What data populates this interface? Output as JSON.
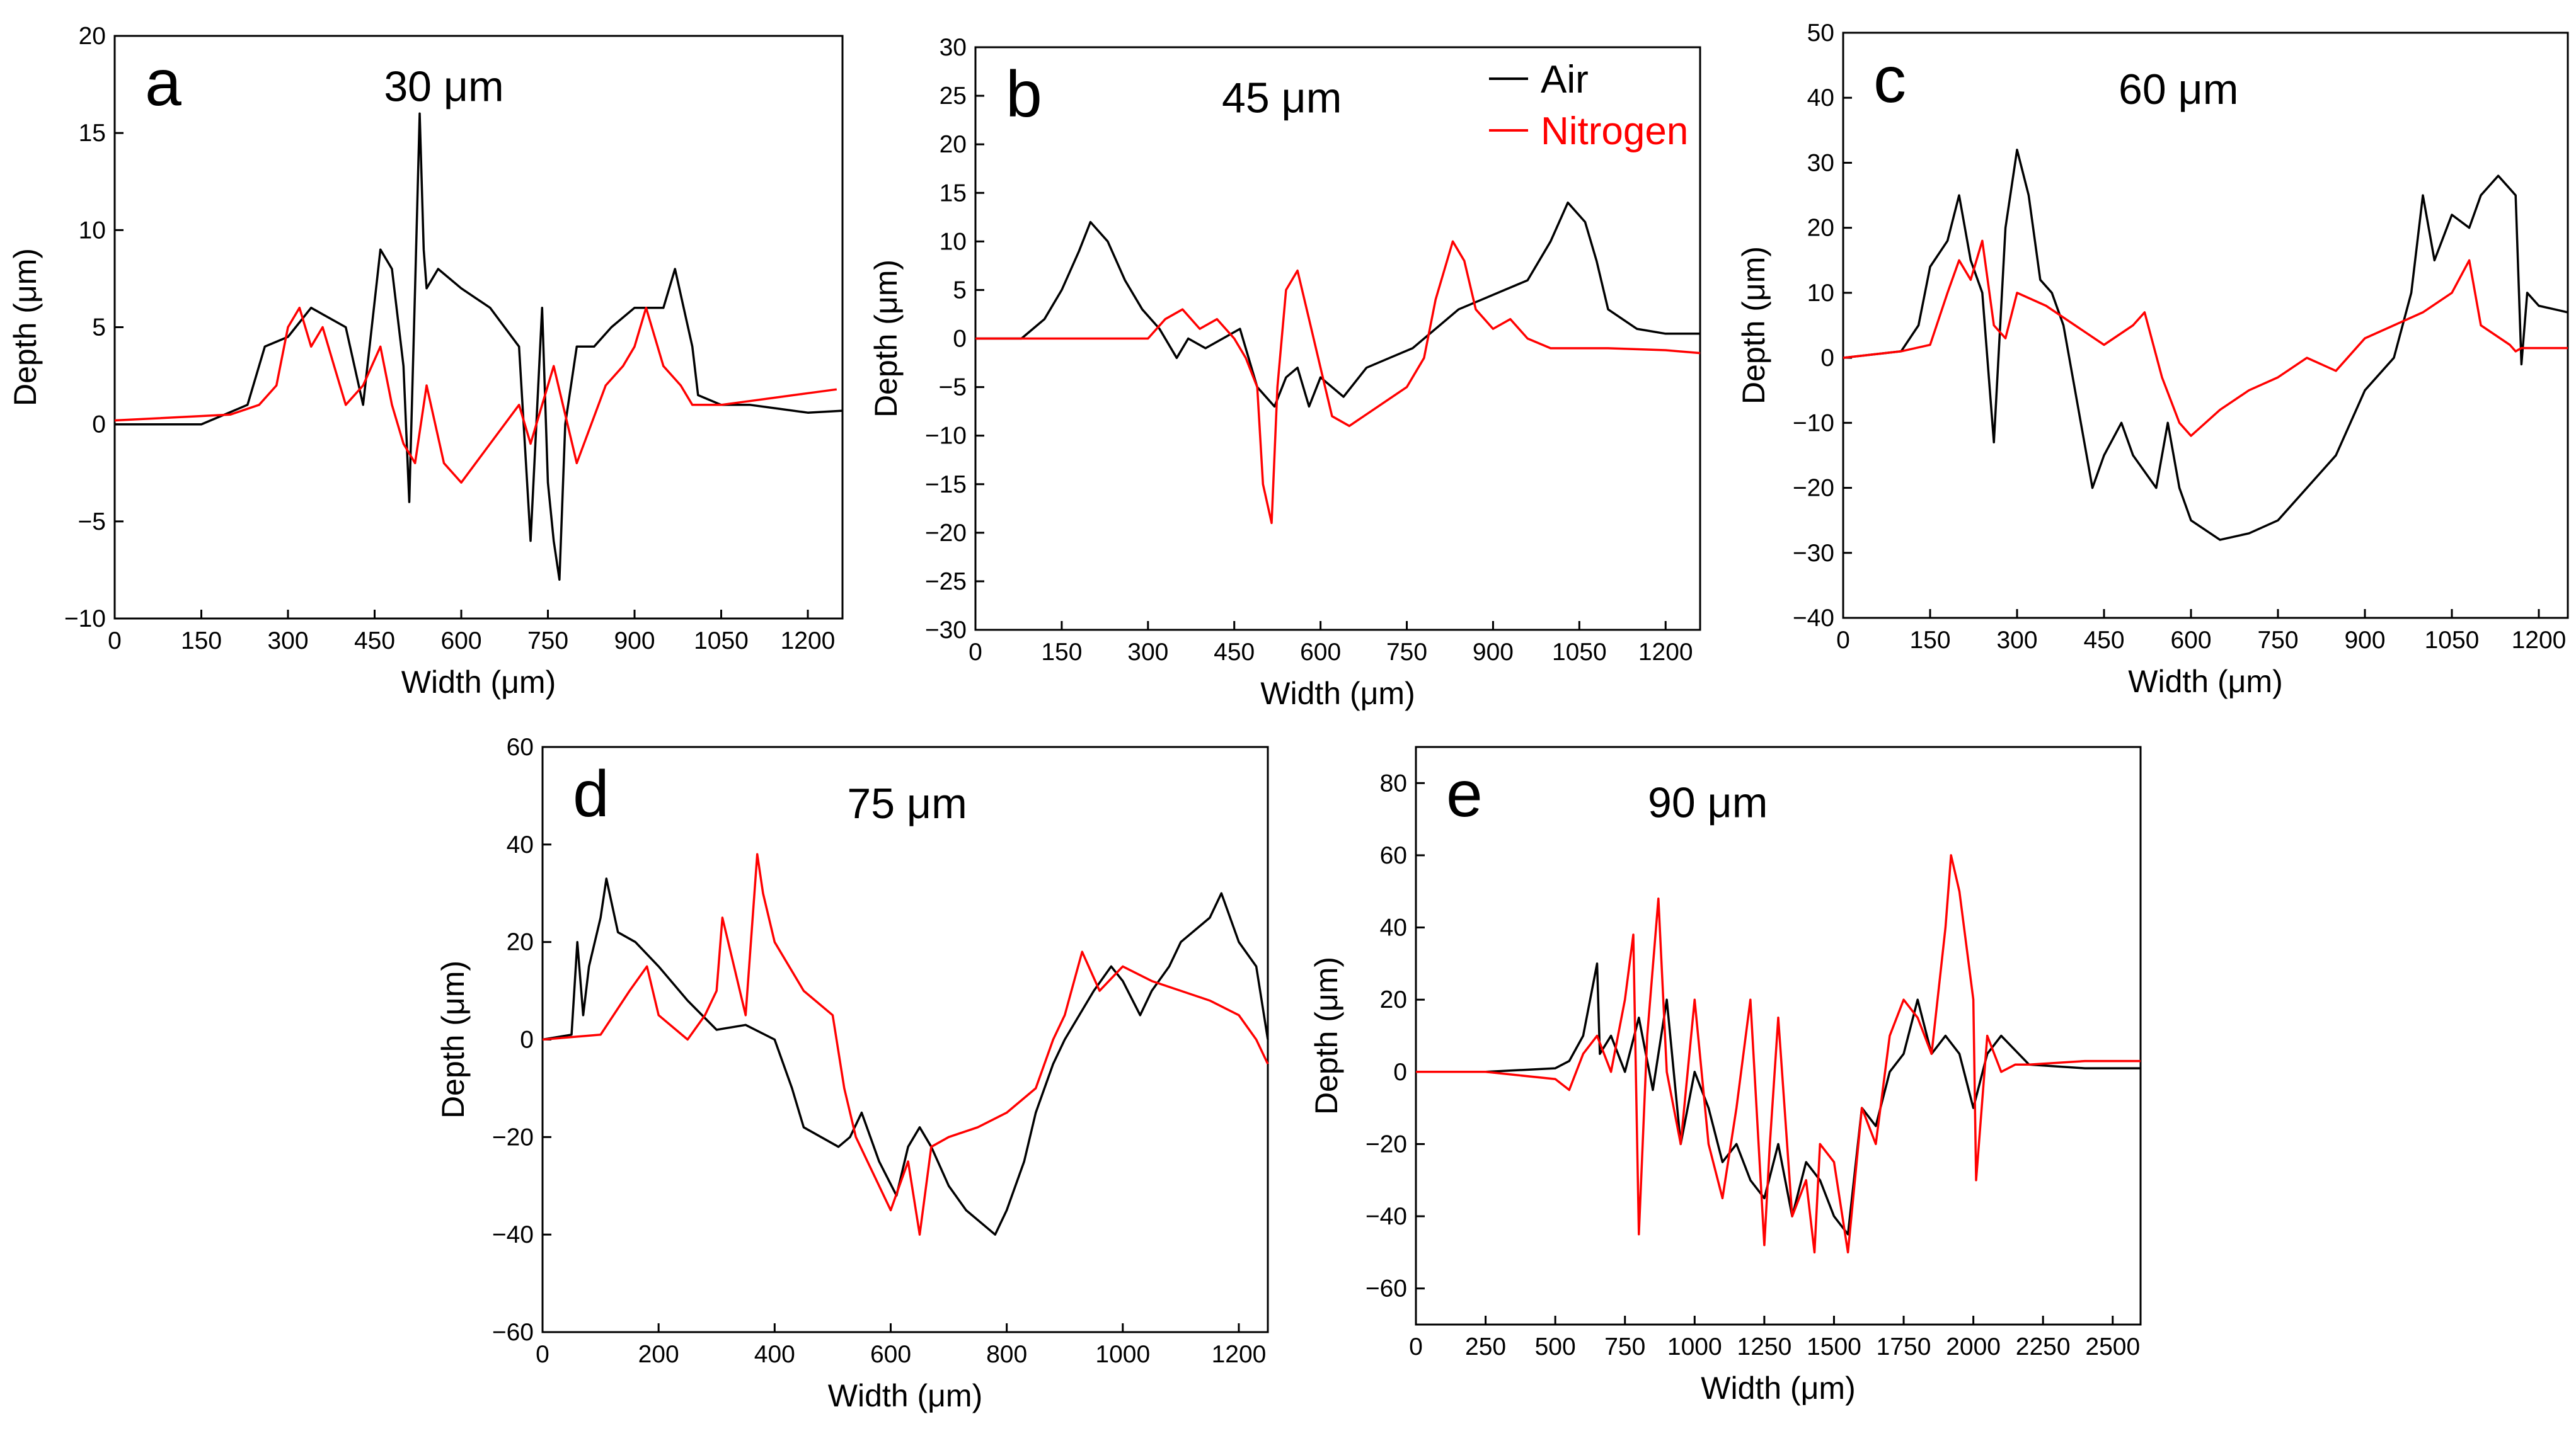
{
  "colors": {
    "air": "#000000",
    "nitrogen": "#ff0000",
    "axis": "#000000",
    "background": "#ffffff"
  },
  "legend": {
    "panel": "b",
    "position": "top-right",
    "entries": [
      "Air",
      "Nitrogen"
    ]
  },
  "chart_data": [
    {
      "panel": "a",
      "title": "30 μm",
      "type": "line",
      "xlabel": "Width (μm)",
      "ylabel": "Depth (μm)",
      "xlim": [
        0,
        1260
      ],
      "ylim": [
        -10,
        20
      ],
      "xticks": [
        0,
        150,
        300,
        450,
        600,
        750,
        900,
        1050,
        1200
      ],
      "yticks": [
        -10,
        -5,
        0,
        5,
        10,
        15,
        20
      ],
      "series": [
        {
          "name": "Air",
          "color": "#000000",
          "x": [
            0,
            150,
            230,
            260,
            300,
            340,
            400,
            430,
            460,
            480,
            500,
            510,
            520,
            528,
            535,
            540,
            560,
            600,
            650,
            700,
            720,
            740,
            750,
            760,
            770,
            780,
            800,
            830,
            860,
            900,
            950,
            970,
            1000,
            1010,
            1050,
            1100,
            1150,
            1200,
            1260
          ],
          "y": [
            0,
            0,
            1,
            4,
            4.5,
            6,
            5,
            1,
            9,
            8,
            3,
            -4,
            7,
            16,
            9,
            7,
            8,
            7,
            6,
            4,
            -6,
            6,
            -3,
            -6,
            -8,
            0,
            4,
            4,
            5,
            6,
            6,
            8,
            4,
            1.5,
            1,
            1,
            0.8,
            0.6,
            0.7
          ]
        },
        {
          "name": "Nitrogen",
          "color": "#ff0000",
          "x": [
            0,
            200,
            250,
            280,
            300,
            320,
            340,
            360,
            380,
            400,
            430,
            460,
            480,
            500,
            520,
            540,
            570,
            600,
            650,
            700,
            720,
            740,
            760,
            800,
            850,
            880,
            900,
            920,
            950,
            980,
            1000,
            1050,
            1100,
            1150,
            1200,
            1250
          ],
          "y": [
            0.2,
            0.5,
            1,
            2,
            5,
            6,
            4,
            5,
            3,
            1,
            2,
            4,
            1,
            -1,
            -2,
            2,
            -2,
            -3,
            -1,
            1,
            -1,
            1,
            3,
            -2,
            2,
            3,
            4,
            6,
            3,
            2,
            1,
            1,
            1.2,
            1.4,
            1.6,
            1.8
          ]
        }
      ]
    },
    {
      "panel": "b",
      "title": "45 μm",
      "type": "line",
      "xlabel": "Width (μm)",
      "ylabel": "Depth (μm)",
      "xlim": [
        0,
        1260
      ],
      "ylim": [
        -30,
        30
      ],
      "xticks": [
        0,
        150,
        300,
        450,
        600,
        750,
        900,
        1050,
        1200
      ],
      "yticks": [
        -30,
        -25,
        -20,
        -15,
        -10,
        -5,
        0,
        5,
        10,
        15,
        20,
        25,
        30
      ],
      "series": [
        {
          "name": "Air",
          "color": "#000000",
          "x": [
            0,
            80,
            120,
            150,
            180,
            200,
            230,
            260,
            290,
            320,
            350,
            370,
            400,
            430,
            460,
            490,
            520,
            540,
            560,
            580,
            600,
            640,
            680,
            720,
            760,
            800,
            840,
            880,
            920,
            960,
            1000,
            1030,
            1060,
            1080,
            1100,
            1150,
            1200,
            1260
          ],
          "y": [
            0,
            0,
            2,
            5,
            9,
            12,
            10,
            6,
            3,
            1,
            -2,
            0,
            -1,
            0,
            1,
            -5,
            -7,
            -4,
            -3,
            -7,
            -4,
            -6,
            -3,
            -2,
            -1,
            1,
            3,
            4,
            5,
            6,
            10,
            14,
            12,
            8,
            3,
            1,
            0.5,
            0.5
          ]
        },
        {
          "name": "Nitrogen",
          "color": "#ff0000",
          "x": [
            0,
            150,
            300,
            330,
            360,
            390,
            420,
            450,
            470,
            490,
            500,
            515,
            525,
            540,
            560,
            580,
            600,
            620,
            650,
            700,
            750,
            780,
            800,
            830,
            850,
            870,
            900,
            930,
            960,
            1000,
            1050,
            1100,
            1200,
            1260
          ],
          "y": [
            0,
            0,
            0,
            2,
            3,
            1,
            2,
            0,
            -2,
            -5,
            -15,
            -19,
            -5,
            5,
            7,
            2,
            -3,
            -8,
            -9,
            -7,
            -5,
            -2,
            4,
            10,
            8,
            3,
            1,
            2,
            0,
            -1,
            -1,
            -1,
            -1.2,
            -1.5
          ]
        }
      ]
    },
    {
      "panel": "c",
      "title": "60 μm",
      "type": "line",
      "xlabel": "Width (μm)",
      "ylabel": "Depth (μm)",
      "xlim": [
        0,
        1250
      ],
      "ylim": [
        -40,
        50
      ],
      "xticks": [
        0,
        150,
        300,
        450,
        600,
        750,
        900,
        1050,
        1200
      ],
      "yticks": [
        -40,
        -30,
        -20,
        -10,
        0,
        10,
        20,
        30,
        40,
        50
      ],
      "series": [
        {
          "name": "Air",
          "color": "#000000",
          "x": [
            0,
            100,
            130,
            150,
            180,
            200,
            220,
            240,
            260,
            280,
            300,
            320,
            340,
            360,
            380,
            400,
            430,
            450,
            480,
            500,
            540,
            560,
            580,
            600,
            650,
            700,
            750,
            800,
            850,
            900,
            950,
            980,
            1000,
            1020,
            1050,
            1080,
            1100,
            1130,
            1150,
            1160,
            1170,
            1180,
            1200,
            1250
          ],
          "y": [
            0,
            1,
            5,
            14,
            18,
            25,
            15,
            10,
            -13,
            20,
            32,
            25,
            12,
            10,
            5,
            -5,
            -20,
            -15,
            -10,
            -15,
            -20,
            -10,
            -20,
            -25,
            -28,
            -27,
            -25,
            -20,
            -15,
            -5,
            0,
            10,
            25,
            15,
            22,
            20,
            25,
            28,
            26,
            25,
            -1,
            10,
            8,
            7
          ]
        },
        {
          "name": "Nitrogen",
          "color": "#ff0000",
          "x": [
            0,
            100,
            150,
            180,
            200,
            220,
            240,
            260,
            280,
            300,
            350,
            400,
            450,
            500,
            520,
            550,
            580,
            600,
            650,
            700,
            750,
            800,
            850,
            900,
            950,
            1000,
            1050,
            1080,
            1100,
            1150,
            1160,
            1170,
            1200,
            1250
          ],
          "y": [
            0,
            1,
            2,
            10,
            15,
            12,
            18,
            5,
            3,
            10,
            8,
            5,
            2,
            5,
            7,
            -3,
            -10,
            -12,
            -8,
            -5,
            -3,
            0,
            -2,
            3,
            5,
            7,
            10,
            15,
            5,
            2,
            1,
            1.5,
            1.5,
            1.5
          ]
        }
      ]
    },
    {
      "panel": "d",
      "title": "75 μm",
      "type": "line",
      "xlabel": "Width (μm)",
      "ylabel": "Depth (μm)",
      "xlim": [
        0,
        1250
      ],
      "ylim": [
        -60,
        60
      ],
      "xticks": [
        0,
        200,
        400,
        600,
        800,
        1000,
        1200
      ],
      "yticks": [
        -60,
        -40,
        -20,
        0,
        20,
        40,
        60
      ],
      "series": [
        {
          "name": "Air",
          "color": "#000000",
          "x": [
            0,
            50,
            60,
            70,
            80,
            100,
            110,
            130,
            160,
            200,
            250,
            300,
            350,
            400,
            430,
            450,
            480,
            510,
            530,
            550,
            580,
            610,
            630,
            650,
            670,
            700,
            730,
            760,
            780,
            800,
            830,
            850,
            880,
            900,
            950,
            980,
            1000,
            1030,
            1050,
            1080,
            1100,
            1150,
            1170,
            1200,
            1230,
            1250
          ],
          "y": [
            0,
            1,
            20,
            5,
            15,
            25,
            33,
            22,
            20,
            15,
            8,
            2,
            3,
            0,
            -10,
            -18,
            -20,
            -22,
            -20,
            -15,
            -25,
            -32,
            -22,
            -18,
            -22,
            -30,
            -35,
            -38,
            -40,
            -35,
            -25,
            -15,
            -5,
            0,
            10,
            15,
            12,
            5,
            10,
            15,
            20,
            25,
            30,
            20,
            15,
            0
          ]
        },
        {
          "name": "Nitrogen",
          "color": "#ff0000",
          "x": [
            0,
            100,
            150,
            180,
            200,
            250,
            280,
            300,
            310,
            330,
            350,
            370,
            380,
            400,
            450,
            500,
            520,
            540,
            560,
            580,
            600,
            630,
            650,
            670,
            700,
            750,
            800,
            850,
            880,
            900,
            930,
            960,
            1000,
            1050,
            1100,
            1150,
            1200,
            1230,
            1250
          ],
          "y": [
            0,
            1,
            10,
            15,
            5,
            0,
            5,
            10,
            25,
            15,
            5,
            38,
            30,
            20,
            10,
            5,
            -10,
            -20,
            -25,
            -30,
            -35,
            -25,
            -40,
            -22,
            -20,
            -18,
            -15,
            -10,
            0,
            5,
            18,
            10,
            15,
            12,
            10,
            8,
            5,
            0,
            -5
          ]
        }
      ]
    },
    {
      "panel": "e",
      "title": "90 μm",
      "type": "line",
      "xlabel": "Width (μm)",
      "ylabel": "Depth (μm)",
      "xlim": [
        0,
        2600
      ],
      "ylim": [
        -70,
        90
      ],
      "xticks": [
        0,
        250,
        500,
        750,
        1000,
        1250,
        1500,
        1750,
        2000,
        2250,
        2500
      ],
      "yticks": [
        -60,
        -40,
        -20,
        0,
        20,
        40,
        60,
        80
      ],
      "series": [
        {
          "name": "Air",
          "color": "#000000",
          "x": [
            0,
            250,
            500,
            550,
            600,
            650,
            660,
            700,
            750,
            800,
            850,
            900,
            950,
            1000,
            1050,
            1100,
            1150,
            1200,
            1250,
            1300,
            1350,
            1400,
            1450,
            1500,
            1550,
            1600,
            1650,
            1700,
            1750,
            1800,
            1850,
            1900,
            1950,
            2000,
            2050,
            2100,
            2200,
            2400,
            2600
          ],
          "y": [
            0,
            0,
            1,
            3,
            10,
            30,
            5,
            10,
            0,
            15,
            -5,
            20,
            -20,
            0,
            -10,
            -25,
            -20,
            -30,
            -35,
            -20,
            -40,
            -25,
            -30,
            -40,
            -45,
            -10,
            -15,
            0,
            5,
            20,
            5,
            10,
            5,
            -10,
            5,
            10,
            2,
            1,
            1
          ]
        },
        {
          "name": "Nitrogen",
          "color": "#ff0000",
          "x": [
            0,
            250,
            500,
            550,
            600,
            650,
            700,
            750,
            780,
            800,
            830,
            870,
            900,
            950,
            1000,
            1050,
            1100,
            1150,
            1200,
            1250,
            1270,
            1300,
            1350,
            1400,
            1430,
            1450,
            1500,
            1550,
            1600,
            1650,
            1700,
            1750,
            1800,
            1850,
            1900,
            1920,
            1950,
            2000,
            2010,
            2050,
            2100,
            2150,
            2200,
            2400,
            2600
          ],
          "y": [
            0,
            0,
            -2,
            -5,
            5,
            10,
            0,
            20,
            38,
            -45,
            10,
            48,
            0,
            -20,
            20,
            -20,
            -35,
            -10,
            20,
            -48,
            -20,
            15,
            -40,
            -30,
            -50,
            -20,
            -25,
            -50,
            -10,
            -20,
            10,
            20,
            15,
            5,
            40,
            60,
            50,
            20,
            -30,
            10,
            0,
            2,
            2,
            3,
            3
          ]
        }
      ]
    }
  ]
}
